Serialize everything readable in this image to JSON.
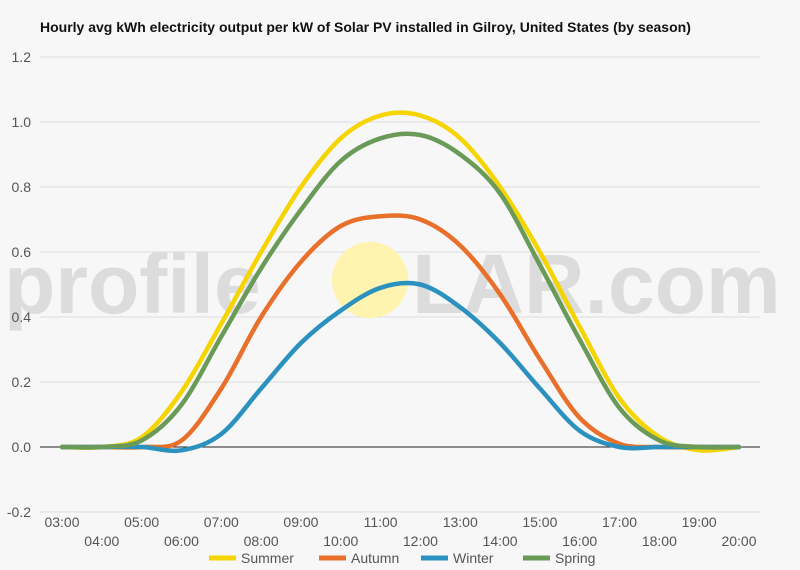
{
  "chart_data": {
    "type": "line",
    "title": "Hourly avg kWh electricity output per kW of Solar PV installed in Gilroy, United States (by season)",
    "xlabel": "",
    "ylabel": "",
    "x": [
      "03:00",
      "04:00",
      "05:00",
      "06:00",
      "07:00",
      "08:00",
      "09:00",
      "10:00",
      "11:00",
      "12:00",
      "13:00",
      "14:00",
      "15:00",
      "16:00",
      "17:00",
      "18:00",
      "19:00",
      "20:00"
    ],
    "x_tick_labels": [
      "03:00",
      "04:00",
      "05:00",
      "06:00",
      "07:00",
      "08:00",
      "09:00",
      "10:00",
      "11:00",
      "12:00",
      "13:00",
      "14:00",
      "15:00",
      "16:00",
      "17:00",
      "18:00",
      "19:00",
      "20:00"
    ],
    "ylim": [
      -0.2,
      1.2
    ],
    "y_ticks": [
      "-0.2",
      "0.0",
      "0.2",
      "0.4",
      "0.6",
      "0.8",
      "1.0",
      "1.2"
    ],
    "grid": true,
    "legend_position": "bottom",
    "series": [
      {
        "name": "Summer",
        "color": "#f5d400",
        "values": [
          0.0,
          0.0,
          0.03,
          0.17,
          0.38,
          0.6,
          0.8,
          0.95,
          1.02,
          1.02,
          0.95,
          0.8,
          0.6,
          0.37,
          0.15,
          0.03,
          -0.01,
          0.0
        ]
      },
      {
        "name": "Autumn",
        "color": "#e8702a",
        "values": [
          0.0,
          0.0,
          0.0,
          0.02,
          0.18,
          0.4,
          0.57,
          0.68,
          0.71,
          0.7,
          0.62,
          0.47,
          0.27,
          0.09,
          0.01,
          0.0,
          0.0,
          0.0
        ]
      },
      {
        "name": "Winter",
        "color": "#2b91bf",
        "values": [
          0.0,
          0.0,
          0.0,
          -0.01,
          0.04,
          0.18,
          0.32,
          0.42,
          0.49,
          0.5,
          0.43,
          0.32,
          0.18,
          0.05,
          0.0,
          0.0,
          0.0,
          0.0
        ]
      },
      {
        "name": "Spring",
        "color": "#6a9a58",
        "values": [
          0.0,
          0.0,
          0.02,
          0.13,
          0.34,
          0.55,
          0.73,
          0.88,
          0.95,
          0.96,
          0.9,
          0.78,
          0.56,
          0.33,
          0.12,
          0.02,
          0.0,
          0.0
        ]
      }
    ]
  },
  "watermark": {
    "left": "profile",
    "right": "LAR.com",
    "sun_color": "#fff3b0"
  }
}
